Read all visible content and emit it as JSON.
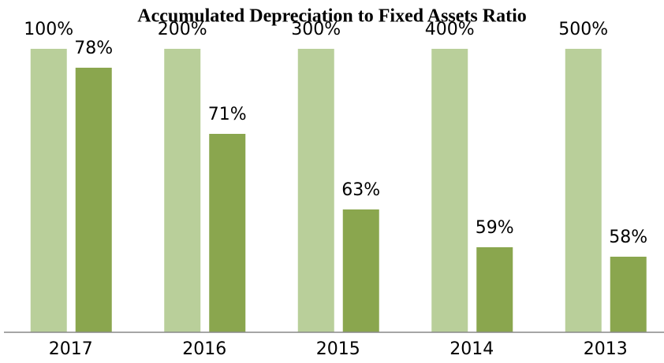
{
  "chart_data": {
    "type": "bar",
    "title": "Accumulated Depreciation to Fixed Assets Ratio",
    "categories": [
      "2017",
      "2016",
      "2015",
      "2014",
      "2013"
    ],
    "series": [
      {
        "color": "#b9cf9a",
        "values": [
          100,
          100,
          100,
          100,
          100
        ]
      },
      {
        "color": "#8aa64e",
        "values": [
          78,
          71,
          63,
          59,
          58
        ],
        "value_labels": [
          "78%",
          "71%",
          "63%",
          "59%",
          "58%"
        ]
      }
    ],
    "annotations": [
      "100%",
      "200%",
      "300%",
      "400%",
      "500%"
    ],
    "ylim": [
      50,
      80
    ]
  }
}
